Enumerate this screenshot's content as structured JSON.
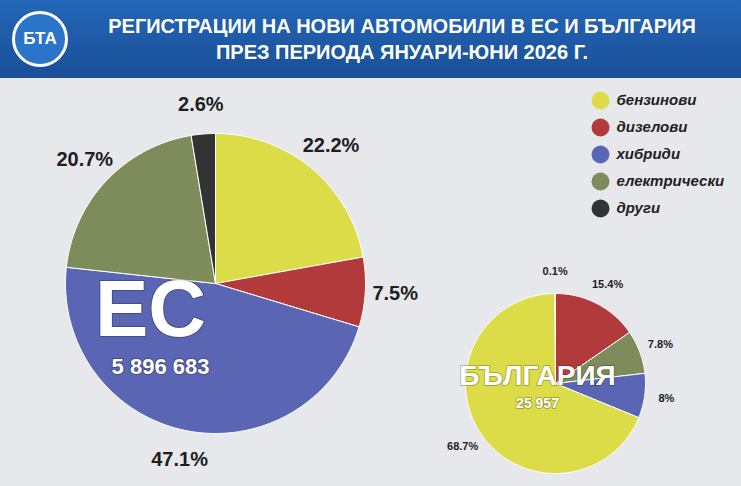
{
  "title": "РЕГИСТРАЦИИ НА НОВИ АВТОМОБИЛИ В ЕС И БЪЛГАРИЯ ПРЕЗ ПЕРИОДА ЯНУАРИ-ЮНИ 2026 Г.",
  "logo": "БТА",
  "chart_data": [
    {
      "type": "pie",
      "title": "ЕС",
      "subtitle": "5 896 683",
      "categories": [
        "бензинови",
        "дизелови",
        "хибриди",
        "електрически",
        "други"
      ],
      "values": [
        22.2,
        7.5,
        47.1,
        20.7,
        2.6
      ],
      "value_labels": [
        "22.2%",
        "7.5%",
        "47.1%",
        "20.7%",
        "2.6%"
      ],
      "colors": [
        "#dcdc48",
        "#b33a3a",
        "#5a66b3",
        "#7e8c5c",
        "#333333"
      ],
      "data_labels": true,
      "legend": "top-right"
    },
    {
      "type": "pie",
      "title": "БЪЛГАРИЯ",
      "subtitle": "25 957",
      "categories": [
        "дизелови",
        "електрически",
        "хибриди",
        "бензинови",
        "други"
      ],
      "values": [
        15.4,
        7.8,
        8,
        68.7,
        0.1
      ],
      "value_labels": [
        "15.4%",
        "7.8%",
        "8%",
        "68.7%",
        "0.1%"
      ],
      "colors": [
        "#b33a3a",
        "#7e8c5c",
        "#5a66b3",
        "#dcdc48",
        "#333333"
      ],
      "data_labels": true
    }
  ]
}
